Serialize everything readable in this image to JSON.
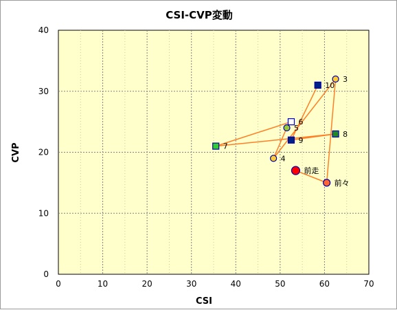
{
  "chart_data": {
    "type": "scatter",
    "title": "CSI-CVP変動",
    "xlabel": "CSI",
    "ylabel": "CVP",
    "xlim": [
      0,
      70
    ],
    "ylim": [
      0,
      40
    ],
    "xticks": [
      0,
      10,
      20,
      30,
      40,
      50,
      60,
      70
    ],
    "yticks": [
      0,
      10,
      20,
      30,
      40
    ],
    "grid": true,
    "colors": {
      "plot_background": "#ffffcc",
      "grid": "#808080",
      "line": "#ff7f27"
    },
    "line_order": [
      "前走",
      "前々",
      "3",
      "4",
      "5",
      "6",
      "7",
      "8",
      "9",
      "10"
    ],
    "points": [
      {
        "label": "前走",
        "x": 53.5,
        "y": 17,
        "shape": "circle",
        "fill": "#ff0000",
        "stroke": "#0000aa",
        "r": 6
      },
      {
        "label": "前々",
        "x": 60.5,
        "y": 15,
        "shape": "circle",
        "fill": "#ff6633",
        "stroke": "#0000aa",
        "r": 5
      },
      {
        "label": "3",
        "x": 62.5,
        "y": 32,
        "shape": "circle",
        "fill": "#ffcc33",
        "stroke": "#0000aa",
        "r": 4.5
      },
      {
        "label": "4",
        "x": 48.5,
        "y": 19,
        "shape": "circle",
        "fill": "#ffcc33",
        "stroke": "#0000aa",
        "r": 4.5
      },
      {
        "label": "5",
        "x": 51.5,
        "y": 24,
        "shape": "circle",
        "fill": "#99cc33",
        "stroke": "#0000aa",
        "r": 4.5
      },
      {
        "label": "6",
        "x": 52.5,
        "y": 25,
        "shape": "square",
        "fill": "#ffffff",
        "stroke": "#0000cc",
        "r": 4.5
      },
      {
        "label": "7",
        "x": 35.5,
        "y": 21,
        "shape": "square",
        "fill": "#33cc33",
        "stroke": "#0000aa",
        "r": 4.5
      },
      {
        "label": "8",
        "x": 62.5,
        "y": 23,
        "shape": "square",
        "fill": "#228822",
        "stroke": "#0000aa",
        "r": 4.5
      },
      {
        "label": "9",
        "x": 52.5,
        "y": 22,
        "shape": "square",
        "fill": "#002288",
        "stroke": "#0000aa",
        "r": 4.5
      },
      {
        "label": "10",
        "x": 58.5,
        "y": 31,
        "shape": "square",
        "fill": "#002288",
        "stroke": "#0000aa",
        "r": 4.5
      }
    ]
  }
}
